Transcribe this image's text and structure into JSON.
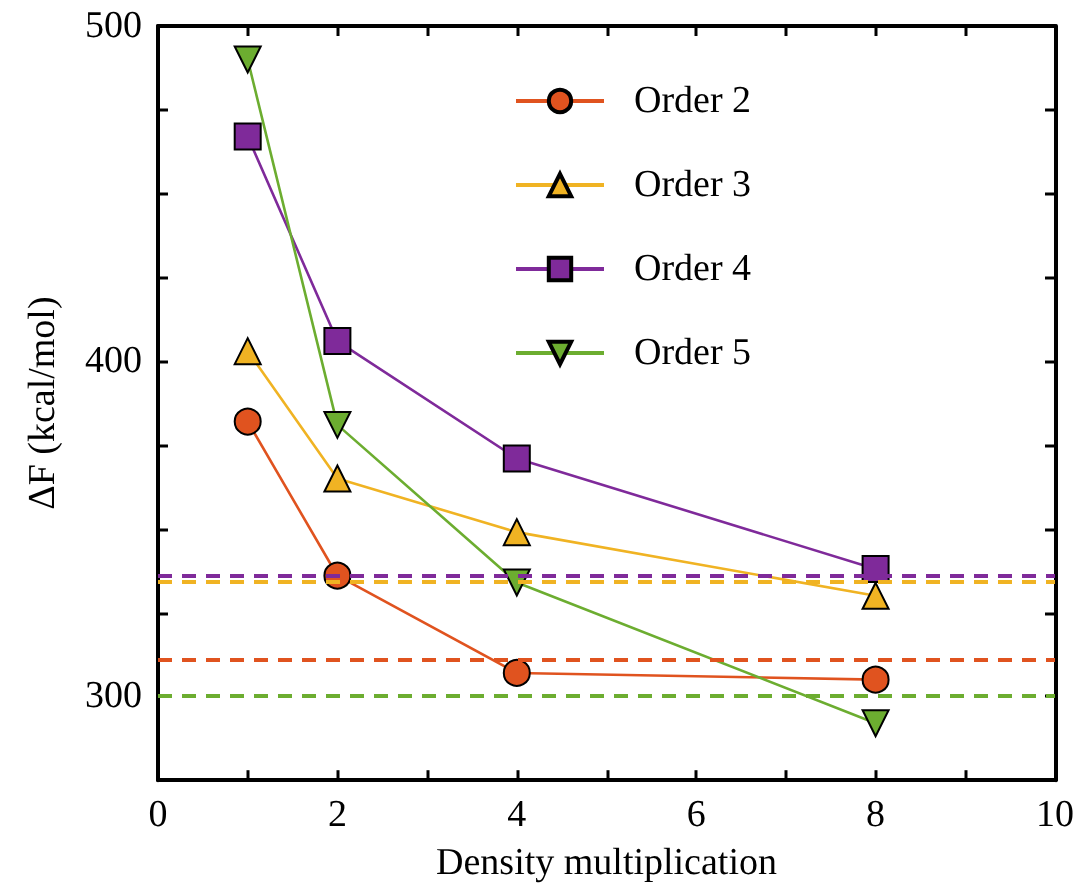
{
  "chart_data": {
    "type": "line",
    "xlabel": "Density multiplication",
    "ylabel": "ΔF (kcal/mol)",
    "xlim": [
      0,
      10
    ],
    "xticks": [
      0,
      {
        "value": 1,
        "label": null
      },
      2,
      {
        "value": 3,
        "label": null
      },
      4,
      {
        "value": 5,
        "label": null
      },
      6,
      {
        "value": 7,
        "label": null
      },
      8,
      {
        "value": 9,
        "label": null
      },
      10
    ],
    "ylim": [
      275,
      500
    ],
    "yticks": [
      300,
      {
        "value": 325,
        "label": null
      },
      {
        "value": 350,
        "label": null
      },
      {
        "value": 375,
        "label": null
      },
      400,
      {
        "value": 425,
        "label": null
      },
      {
        "value": 450,
        "label": null
      },
      {
        "value": 475,
        "label": null
      },
      500
    ],
    "x": [
      1,
      2,
      4,
      8
    ],
    "grid": false,
    "legend": "top",
    "line_style": "solid",
    "series": [
      {
        "name": "Order 2",
        "color": "#e0531f",
        "marker": "circle",
        "values": [
          382,
          336,
          307,
          305
        ]
      },
      {
        "name": "Order 3",
        "color": "#f0b323",
        "marker": "triangle",
        "values": [
          403,
          365,
          349,
          330
        ]
      },
      {
        "name": "Order 4",
        "color": "#7f2a9a",
        "marker": "square",
        "values": [
          467,
          406,
          371,
          338
        ]
      },
      {
        "name": "Order 5",
        "color": "#6cad30",
        "marker": "triangle-down",
        "values": [
          490,
          381,
          334,
          292
        ]
      }
    ],
    "ref_lines": [
      {
        "axis": "y",
        "value": 336,
        "color": "#7f2a9a",
        "line_style": "dashed"
      },
      {
        "axis": "y",
        "value": 334.5,
        "color": "#f0b323",
        "line_style": "dashed"
      },
      {
        "axis": "y",
        "value": 311,
        "color": "#e0531f",
        "line_style": "dashed"
      },
      {
        "axis": "y",
        "value": 300,
        "color": "#6cad30",
        "line_style": "dashed"
      }
    ]
  }
}
